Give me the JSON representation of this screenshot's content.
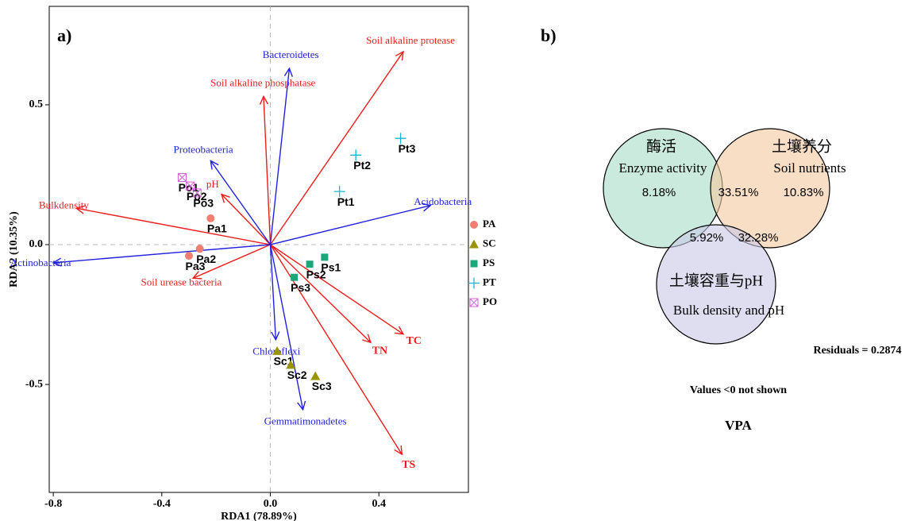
{
  "chart_data": [
    {
      "type": "biplot",
      "title": "a)",
      "x_label": "RDA1 (78.89%)",
      "y_label": "RDA2 (10.35%)",
      "xlim": [
        -0.815,
        0.73
      ],
      "ylim": [
        -0.886,
        0.852
      ],
      "xticks": [
        -0.8,
        -0.4,
        {
          "value": 0,
          "label": "0.0"
        },
        0.4
      ],
      "yticks": [
        -0.5,
        {
          "value": 0,
          "label": "0.0"
        },
        0.5
      ],
      "arrows": [
        {
          "name": "Soil alkaline protease",
          "color": "#ee1c1c",
          "x": 0.49,
          "y": 0.69
        },
        {
          "name": "Soil alkaline phosphatase",
          "color": "#ee1c1c",
          "x": -0.025,
          "y": 0.53
        },
        {
          "name": "Bulkdensity",
          "color": "#ee1c1c",
          "x": -0.715,
          "y": 0.13
        },
        {
          "name": "pH",
          "color": "#ee1c1c",
          "x": -0.18,
          "y": 0.18
        },
        {
          "name": "Soil urease bacteria",
          "color": "#ee1c1c",
          "x": -0.285,
          "y": -0.12
        },
        {
          "name": "TC",
          "color": "#ee1c1c",
          "x": 0.49,
          "y": -0.32,
          "bold": true
        },
        {
          "name": "TN",
          "color": "#ee1c1c",
          "x": 0.37,
          "y": -0.35,
          "bold": true
        },
        {
          "name": "TS",
          "color": "#ee1c1c",
          "x": 0.485,
          "y": -0.75,
          "bold": true
        },
        {
          "name": "Bacteroidetes",
          "color": "#2020e0",
          "x": 0.07,
          "y": 0.63
        },
        {
          "name": "Proteobacteria",
          "color": "#2020e0",
          "x": -0.22,
          "y": 0.3
        },
        {
          "name": "Acidobacteria",
          "color": "#2020e0",
          "x": 0.59,
          "y": 0.14
        },
        {
          "name": "Actinobacteria",
          "color": "#2020e0",
          "x": -0.8,
          "y": -0.065
        },
        {
          "name": "Chloroflexi",
          "color": "#2020e0",
          "x": 0.02,
          "y": -0.34
        },
        {
          "name": "Gemmatimonadetes",
          "color": "#2020e0",
          "x": 0.12,
          "y": -0.59
        }
      ],
      "series": [
        {
          "name": "PA",
          "color": "#f07f72",
          "marker": "circle",
          "labels": [
            "Pa1",
            "Pa2",
            "Pa3"
          ],
          "x": [
            -0.22,
            -0.26,
            -0.3
          ],
          "y": [
            0.094,
            -0.015,
            -0.04
          ]
        },
        {
          "name": "SC",
          "color": "#9a9400",
          "marker": "triangle",
          "labels": [
            "Sc1",
            "Sc2",
            "Sc3"
          ],
          "x": [
            0.025,
            0.075,
            0.166
          ],
          "y": [
            -0.38,
            -0.43,
            -0.47
          ]
        },
        {
          "name": "PS",
          "color": "#1aa779",
          "marker": "square",
          "labels": [
            "Ps1",
            "Ps2",
            "Ps3"
          ],
          "x": [
            0.2,
            0.145,
            0.088
          ],
          "y": [
            -0.045,
            -0.07,
            -0.117
          ]
        },
        {
          "name": "PT",
          "color": "#19b5d8",
          "marker": "plus",
          "labels": [
            "Pt1",
            "Pt2",
            "Pt3"
          ],
          "x": [
            0.255,
            0.315,
            0.48
          ],
          "y": [
            0.19,
            0.32,
            0.38
          ]
        },
        {
          "name": "PO",
          "color": "#d55fd5",
          "marker": "boxx",
          "labels": [
            "Po1",
            "Po2",
            "Po3"
          ],
          "x": [
            -0.325,
            -0.295,
            -0.27
          ],
          "y": [
            0.24,
            0.21,
            0.185
          ]
        }
      ]
    },
    {
      "type": "venn",
      "title": "b)",
      "caption": "VPA",
      "note": "Values <0 not shown",
      "residuals": "Residuals = 0.2874",
      "sets": [
        {
          "name": "酶活",
          "subname": "Enzyme activity",
          "color": "#a8dcc8"
        },
        {
          "name": "土壤养分",
          "subname": "Soil nutrients",
          "color": "#f5c8a0"
        },
        {
          "name": "土壤容重与pH",
          "subname": "Bulk density and pH",
          "color": "#c8c8e6"
        }
      ],
      "values": [
        8.18,
        33.51,
        10.83,
        5.92,
        32.28
      ],
      "value_labels": [
        "8.18%",
        "33.51%",
        "10.83%",
        "5.92%",
        "32.28%"
      ]
    }
  ]
}
